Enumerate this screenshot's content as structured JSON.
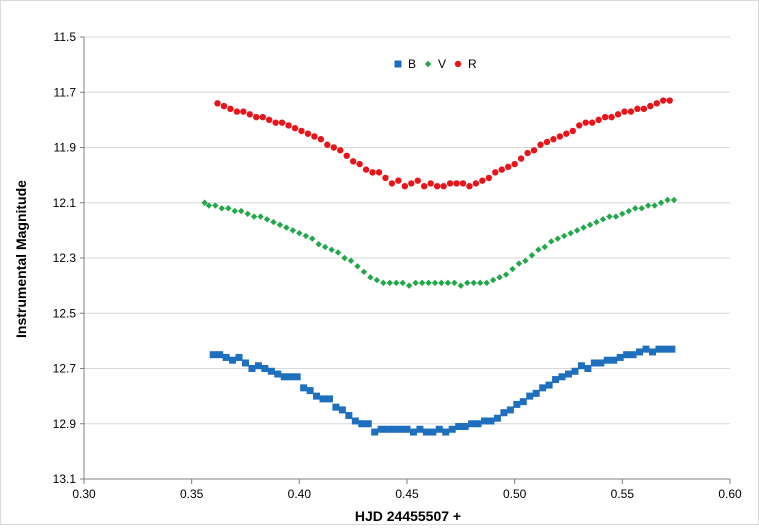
{
  "chart_data": {
    "type": "scatter",
    "xlabel": "HJD 24455507 +",
    "ylabel": "Instrumental Magnitude",
    "xlim": [
      0.3,
      0.6
    ],
    "ylim": [
      11.5,
      13.1
    ],
    "y_inverted": true,
    "x_ticks": [
      "0.30",
      "0.35",
      "0.40",
      "0.45",
      "0.50",
      "0.55",
      "0.60"
    ],
    "y_ticks": [
      "11.5",
      "11.7",
      "11.9",
      "12.1",
      "12.3",
      "12.5",
      "12.7",
      "12.9",
      "13.1"
    ],
    "grid": "horizontal",
    "legend_position": "top-center",
    "series": [
      {
        "name": "B",
        "color": "#1f6fbf",
        "marker": "square",
        "x": [
          0.36,
          0.363,
          0.366,
          0.369,
          0.372,
          0.375,
          0.378,
          0.381,
          0.384,
          0.387,
          0.39,
          0.393,
          0.396,
          0.399,
          0.402,
          0.405,
          0.408,
          0.411,
          0.414,
          0.417,
          0.42,
          0.423,
          0.426,
          0.429,
          0.432,
          0.435,
          0.438,
          0.441,
          0.444,
          0.447,
          0.45,
          0.453,
          0.456,
          0.459,
          0.462,
          0.465,
          0.468,
          0.471,
          0.474,
          0.477,
          0.48,
          0.483,
          0.486,
          0.489,
          0.492,
          0.495,
          0.498,
          0.501,
          0.504,
          0.507,
          0.51,
          0.513,
          0.516,
          0.519,
          0.522,
          0.525,
          0.528,
          0.531,
          0.534,
          0.537,
          0.54,
          0.543,
          0.546,
          0.549,
          0.552,
          0.555,
          0.558,
          0.561,
          0.564,
          0.567,
          0.57,
          0.573
        ],
        "y": [
          12.65,
          12.65,
          12.66,
          12.67,
          12.66,
          12.68,
          12.7,
          12.69,
          12.7,
          12.71,
          12.72,
          12.73,
          12.73,
          12.73,
          12.77,
          12.78,
          12.8,
          12.81,
          12.81,
          12.84,
          12.85,
          12.87,
          12.89,
          12.9,
          12.9,
          12.93,
          12.92,
          12.92,
          12.92,
          12.92,
          12.92,
          12.93,
          12.92,
          12.93,
          12.93,
          12.92,
          12.93,
          12.92,
          12.91,
          12.91,
          12.9,
          12.9,
          12.89,
          12.89,
          12.88,
          12.86,
          12.85,
          12.83,
          12.82,
          12.8,
          12.79,
          12.77,
          12.76,
          12.74,
          12.73,
          12.72,
          12.71,
          12.69,
          12.7,
          12.68,
          12.68,
          12.67,
          12.67,
          12.66,
          12.65,
          12.65,
          12.64,
          12.63,
          12.64,
          12.63,
          12.63,
          12.63
        ]
      },
      {
        "name": "V",
        "color": "#22a84a",
        "marker": "diamond",
        "x": [
          0.356,
          0.358,
          0.361,
          0.364,
          0.367,
          0.37,
          0.373,
          0.376,
          0.379,
          0.382,
          0.385,
          0.388,
          0.391,
          0.394,
          0.397,
          0.4,
          0.403,
          0.406,
          0.409,
          0.412,
          0.415,
          0.418,
          0.421,
          0.424,
          0.427,
          0.43,
          0.433,
          0.436,
          0.439,
          0.442,
          0.445,
          0.448,
          0.451,
          0.454,
          0.457,
          0.46,
          0.463,
          0.466,
          0.469,
          0.472,
          0.475,
          0.478,
          0.481,
          0.484,
          0.487,
          0.49,
          0.493,
          0.496,
          0.499,
          0.502,
          0.505,
          0.508,
          0.511,
          0.514,
          0.517,
          0.52,
          0.523,
          0.526,
          0.529,
          0.532,
          0.535,
          0.538,
          0.541,
          0.544,
          0.547,
          0.55,
          0.553,
          0.556,
          0.559,
          0.562,
          0.565,
          0.568,
          0.571,
          0.574
        ],
        "y": [
          12.1,
          12.11,
          12.11,
          12.12,
          12.12,
          12.13,
          12.13,
          12.14,
          12.15,
          12.15,
          12.16,
          12.17,
          12.18,
          12.19,
          12.2,
          12.21,
          12.22,
          12.23,
          12.25,
          12.26,
          12.27,
          12.28,
          12.3,
          12.31,
          12.33,
          12.35,
          12.37,
          12.38,
          12.39,
          12.39,
          12.39,
          12.39,
          12.4,
          12.39,
          12.39,
          12.39,
          12.39,
          12.39,
          12.39,
          12.39,
          12.4,
          12.39,
          12.39,
          12.39,
          12.39,
          12.38,
          12.37,
          12.36,
          12.34,
          12.32,
          12.31,
          12.29,
          12.27,
          12.26,
          12.24,
          12.23,
          12.22,
          12.21,
          12.2,
          12.19,
          12.18,
          12.17,
          12.16,
          12.15,
          12.15,
          12.14,
          12.13,
          12.12,
          12.12,
          12.11,
          12.11,
          12.1,
          12.09,
          12.09
        ]
      },
      {
        "name": "R",
        "color": "#e8141a",
        "marker": "circle",
        "x": [
          0.362,
          0.365,
          0.368,
          0.371,
          0.374,
          0.377,
          0.38,
          0.383,
          0.386,
          0.389,
          0.392,
          0.395,
          0.398,
          0.401,
          0.404,
          0.407,
          0.41,
          0.413,
          0.416,
          0.419,
          0.422,
          0.425,
          0.428,
          0.431,
          0.434,
          0.437,
          0.44,
          0.443,
          0.446,
          0.449,
          0.452,
          0.455,
          0.458,
          0.461,
          0.464,
          0.467,
          0.47,
          0.473,
          0.476,
          0.479,
          0.482,
          0.485,
          0.488,
          0.491,
          0.494,
          0.497,
          0.5,
          0.503,
          0.506,
          0.509,
          0.512,
          0.515,
          0.518,
          0.521,
          0.524,
          0.527,
          0.53,
          0.533,
          0.536,
          0.539,
          0.542,
          0.545,
          0.548,
          0.551,
          0.554,
          0.557,
          0.56,
          0.563,
          0.566,
          0.569,
          0.572
        ],
        "y": [
          11.74,
          11.75,
          11.76,
          11.77,
          11.77,
          11.78,
          11.79,
          11.79,
          11.8,
          11.81,
          11.81,
          11.82,
          11.83,
          11.84,
          11.85,
          11.86,
          11.87,
          11.89,
          11.9,
          11.91,
          11.93,
          11.95,
          11.96,
          11.98,
          11.99,
          11.99,
          12.01,
          12.03,
          12.02,
          12.04,
          12.03,
          12.02,
          12.04,
          12.03,
          12.04,
          12.04,
          12.03,
          12.03,
          12.03,
          12.04,
          12.03,
          12.02,
          12.01,
          11.99,
          11.98,
          11.97,
          11.96,
          11.94,
          11.92,
          11.91,
          11.89,
          11.88,
          11.87,
          11.86,
          11.85,
          11.84,
          11.82,
          11.81,
          11.81,
          11.8,
          11.79,
          11.79,
          11.78,
          11.77,
          11.77,
          11.76,
          11.76,
          11.75,
          11.74,
          11.73,
          11.73
        ]
      }
    ]
  }
}
